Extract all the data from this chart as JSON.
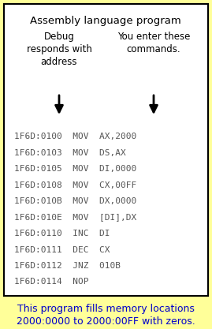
{
  "title": "Assembly language program",
  "left_header": "Debug\nresponds with\naddress",
  "right_header": "You enter these\ncommands.",
  "code_lines": [
    "1F6D:0100  MOV  AX,2000",
    "1F6D:0103  MOV  DS,AX",
    "1F6D:0105  MOV  DI,0000",
    "1F6D:0108  MOV  CX,00FF",
    "1F6D:010B  MOV  DX,0000",
    "1F6D:010E  MOV  [DI],DX",
    "1F6D:0110  INC  DI",
    "1F6D:0111  DEC  CX",
    "1F6D:0112  JNZ  010B",
    "1F6D:0114  NOP"
  ],
  "footer": "This program fills memory locations\n2000:0000 to 2000:00FF with zeros.",
  "bg_color": "#FFFF99",
  "box_bg": "#FFFFFF",
  "border_color": "#000000",
  "text_color": "#000000",
  "footer_color": "#0000CC",
  "code_color": "#555555",
  "title_fontsize": 9.5,
  "header_fontsize": 8.5,
  "code_fontsize": 8.0,
  "footer_fontsize": 9.0
}
